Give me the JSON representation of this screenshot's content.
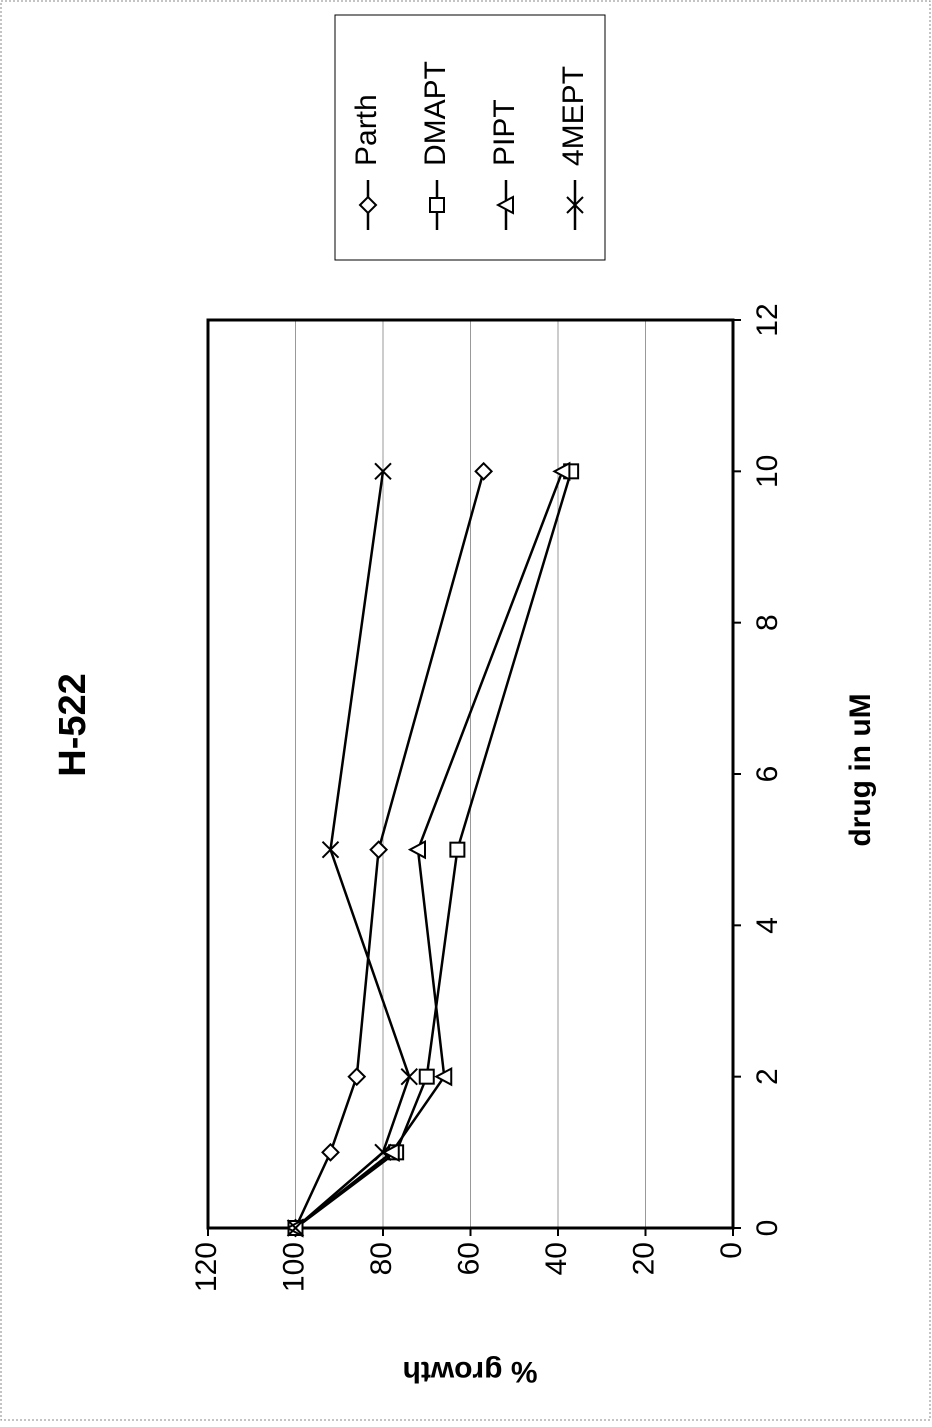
{
  "chart_data": {
    "type": "line",
    "title": "H-522",
    "x_label": "drug in uM",
    "y_label": "% growth",
    "x": [
      0,
      1,
      2,
      5,
      10
    ],
    "series": [
      {
        "name": "Parth",
        "color": "#000000",
        "marker": "diamond",
        "values": [
          100,
          92,
          86,
          81,
          57
        ]
      },
      {
        "name": "DMAPT",
        "color": "#000000",
        "marker": "square",
        "values": [
          100,
          77,
          70,
          63,
          37
        ]
      },
      {
        "name": "PIPT",
        "color": "#000000",
        "marker": "triangle",
        "values": [
          100,
          78,
          66,
          72,
          39
        ]
      },
      {
        "name": "4MEPT",
        "color": "#000000",
        "marker": "x",
        "values": [
          100,
          80,
          74,
          92,
          80
        ]
      }
    ],
    "xlim": [
      0,
      12
    ],
    "xticks": [
      0,
      2,
      4,
      6,
      8,
      10,
      12
    ],
    "ylim": [
      0,
      120
    ],
    "yticks": [
      0,
      20,
      40,
      60,
      80,
      100,
      120
    ],
    "grid": true,
    "legend": "right"
  }
}
